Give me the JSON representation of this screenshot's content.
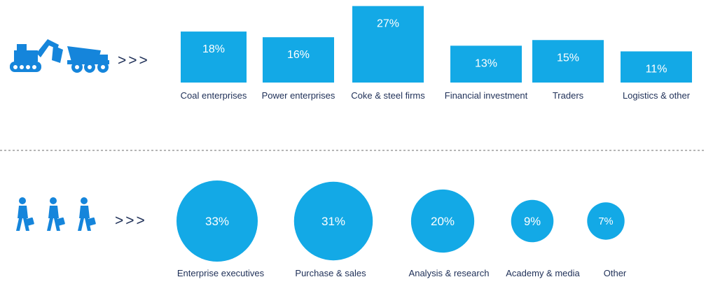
{
  "colors": {
    "accent": "#13a9e6",
    "label": "#1e2f57",
    "divider": "#8a8a8a",
    "icon": "#1585db"
  },
  "icons": {
    "top": [
      "excavator-icon",
      "dump-truck-icon"
    ],
    "bottom": [
      "business-people-icon"
    ]
  },
  "arrows_top": ">>>",
  "arrows_bottom": ">>>",
  "chart_data": [
    {
      "type": "bar",
      "categories": [
        "Coal enterprises",
        "Power enterprises",
        "Coke & steel firms",
        "Financial investment",
        "Traders",
        "Logistics & other"
      ],
      "values": [
        18,
        16,
        27,
        13,
        15,
        11
      ],
      "value_labels": [
        "18%",
        "16%",
        "27%",
        "13%",
        "15%",
        "11%"
      ],
      "unit": "%",
      "grid": false,
      "axes": false
    },
    {
      "type": "bubble",
      "categories": [
        "Enterprise executives",
        "Purchase & sales",
        "Analysis & research",
        "Academy & media",
        "Other"
      ],
      "values": [
        33,
        31,
        20,
        9,
        7
      ],
      "value_labels": [
        "33%",
        "31%",
        "20%",
        "9%",
        "7%"
      ],
      "unit": "%",
      "grid": false,
      "axes": false
    }
  ]
}
